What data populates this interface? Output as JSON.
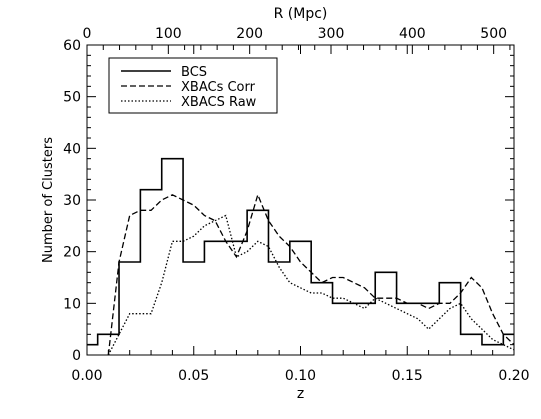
{
  "chart_data": {
    "type": "line",
    "xlabel": "z",
    "ylabel": "Number of Clusters",
    "top_xlabel": "R (Mpc)",
    "xlim": [
      0.0,
      0.2
    ],
    "ylim": [
      0,
      60
    ],
    "top_xlim": [
      0,
      525
    ],
    "x_ticks": [
      "0.00",
      "0.05",
      "0.10",
      "0.15",
      "0.20"
    ],
    "x_tick_values": [
      0.0,
      0.05,
      0.1,
      0.15,
      0.2
    ],
    "y_ticks": [
      "0",
      "10",
      "20",
      "30",
      "40",
      "50",
      "60"
    ],
    "y_tick_values": [
      0,
      10,
      20,
      30,
      40,
      50,
      60
    ],
    "top_ticks": [
      "0",
      "100",
      "200",
      "300",
      "400",
      "500"
    ],
    "top_tick_values": [
      0,
      100,
      200,
      300,
      400,
      500
    ],
    "grid": false,
    "legend_position": "top-left",
    "series": [
      {
        "name": "BCS",
        "style": "step",
        "dash": "solid",
        "bin_edges": [
          0.0,
          0.005,
          0.015,
          0.025,
          0.035,
          0.045,
          0.055,
          0.065,
          0.075,
          0.085,
          0.095,
          0.105,
          0.115,
          0.125,
          0.135,
          0.145,
          0.155,
          0.165,
          0.175,
          0.185,
          0.195,
          0.2
        ],
        "values": [
          2,
          4,
          18,
          32,
          38,
          18,
          22,
          22,
          28,
          18,
          22,
          14,
          10,
          10,
          16,
          10,
          10,
          14,
          4,
          2,
          4
        ]
      },
      {
        "name": "XBACs Corr",
        "style": "line",
        "dash": "dashed",
        "x": [
          0.01,
          0.015,
          0.02,
          0.025,
          0.03,
          0.035,
          0.04,
          0.045,
          0.05,
          0.055,
          0.06,
          0.065,
          0.07,
          0.075,
          0.08,
          0.085,
          0.09,
          0.095,
          0.1,
          0.105,
          0.11,
          0.115,
          0.12,
          0.125,
          0.13,
          0.135,
          0.14,
          0.145,
          0.15,
          0.155,
          0.16,
          0.165,
          0.17,
          0.175,
          0.18,
          0.185,
          0.19,
          0.195,
          0.2
        ],
        "y": [
          0,
          18,
          27,
          28,
          28,
          30,
          31,
          30,
          29,
          27,
          26,
          22,
          19,
          24,
          31,
          26,
          23,
          21,
          18,
          16,
          14,
          15,
          15,
          14,
          13,
          11,
          11,
          11,
          10,
          10,
          9,
          10,
          10,
          12,
          15,
          13,
          8,
          4,
          2
        ]
      },
      {
        "name": "XBACS Raw",
        "style": "line",
        "dash": "dotted",
        "x": [
          0.01,
          0.015,
          0.02,
          0.025,
          0.03,
          0.035,
          0.04,
          0.045,
          0.05,
          0.055,
          0.06,
          0.065,
          0.07,
          0.075,
          0.08,
          0.085,
          0.09,
          0.095,
          0.1,
          0.105,
          0.11,
          0.115,
          0.12,
          0.125,
          0.13,
          0.135,
          0.14,
          0.145,
          0.15,
          0.155,
          0.16,
          0.165,
          0.17,
          0.175,
          0.18,
          0.185,
          0.19,
          0.195,
          0.2
        ],
        "y": [
          0,
          4,
          8,
          8,
          8,
          14,
          22,
          22,
          23,
          25,
          26,
          27,
          19,
          20,
          22,
          21,
          17,
          14,
          13,
          12,
          12,
          11,
          11,
          10,
          9,
          11,
          10,
          9,
          8,
          7,
          5,
          7,
          9,
          10,
          7,
          5,
          3,
          2,
          1
        ]
      }
    ]
  }
}
